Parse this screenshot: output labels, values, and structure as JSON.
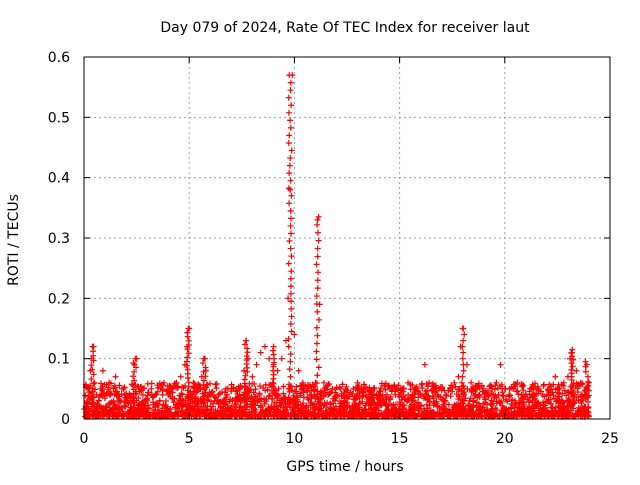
{
  "chart_data": {
    "type": "scatter",
    "title": "Day 079 of 2024, Rate Of TEC Index for receiver laut",
    "xlabel": "GPS time / hours",
    "ylabel": "ROTI / TECUs",
    "xlim": [
      0,
      25
    ],
    "ylim": [
      0,
      0.6
    ],
    "xticks": [
      0,
      5,
      10,
      15,
      20,
      25
    ],
    "xtick_labels": [
      "0",
      "5",
      "10",
      "15",
      "20",
      "25"
    ],
    "yticks": [
      0,
      0.1,
      0.2,
      0.3,
      0.4,
      0.5,
      0.6
    ],
    "ytick_labels": [
      "0",
      "0.1",
      "0.2",
      "0.3",
      "0.4",
      "0.5",
      "0.6"
    ],
    "grid": true,
    "marker": "+",
    "marker_color": "#ff0000",
    "series": [
      {
        "name": "ROTI",
        "x": [
          0.1,
          0.2,
          0.3,
          0.35,
          0.4,
          0.5,
          0.6,
          0.7,
          0.8,
          0.9,
          1.0,
          1.2,
          1.4,
          1.5,
          1.6,
          1.8,
          2.0,
          2.2,
          2.4,
          2.5,
          2.6,
          2.8,
          3.0,
          3.2,
          3.4,
          3.6,
          3.8,
          4.0,
          4.2,
          4.4,
          4.6,
          4.8,
          4.9,
          5.0,
          5.2,
          5.4,
          5.6,
          5.7,
          5.8,
          6.0,
          6.2,
          6.4,
          6.6,
          6.8,
          7.0,
          7.2,
          7.4,
          7.6,
          7.7,
          7.8,
          8.0,
          8.2,
          8.4,
          8.6,
          8.8,
          9.0,
          9.2,
          9.4,
          9.6,
          9.7,
          9.8,
          9.9,
          10.0,
          10.2,
          10.4,
          10.6,
          10.8,
          11.0,
          11.1,
          11.2,
          11.4,
          11.6,
          11.8,
          12.0,
          12.2,
          12.4,
          12.6,
          12.8,
          13.0,
          13.2,
          13.4,
          13.6,
          13.8,
          14.0,
          14.2,
          14.4,
          14.6,
          14.8,
          15.0,
          15.2,
          15.4,
          15.6,
          15.8,
          16.0,
          16.2,
          16.4,
          16.6,
          16.8,
          17.0,
          17.2,
          17.4,
          17.6,
          17.8,
          17.9,
          18.0,
          18.2,
          18.4,
          18.6,
          18.8,
          19.0,
          19.2,
          19.4,
          19.6,
          19.8,
          20.0,
          20.2,
          20.4,
          20.6,
          20.8,
          21.0,
          21.2,
          21.4,
          21.6,
          21.8,
          22.0,
          22.2,
          22.4,
          22.6,
          22.8,
          23.0,
          23.1,
          23.2,
          23.4,
          23.6,
          23.8,
          23.9,
          24.0
        ],
        "y": [
          0.02,
          0.05,
          0.08,
          0.1,
          0.12,
          0.06,
          0.04,
          0.03,
          0.05,
          0.08,
          0.04,
          0.06,
          0.03,
          0.07,
          0.04,
          0.05,
          0.04,
          0.03,
          0.09,
          0.1,
          0.05,
          0.04,
          0.03,
          0.05,
          0.04,
          0.03,
          0.06,
          0.04,
          0.05,
          0.06,
          0.07,
          0.09,
          0.12,
          0.15,
          0.06,
          0.05,
          0.07,
          0.1,
          0.08,
          0.04,
          0.03,
          0.04,
          0.03,
          0.04,
          0.05,
          0.03,
          0.04,
          0.08,
          0.13,
          0.1,
          0.07,
          0.09,
          0.11,
          0.12,
          0.1,
          0.09,
          0.08,
          0.1,
          0.13,
          0.2,
          0.38,
          0.57,
          0.14,
          0.08,
          0.06,
          0.05,
          0.04,
          0.06,
          0.33,
          0.19,
          0.06,
          0.04,
          0.05,
          0.04,
          0.05,
          0.03,
          0.04,
          0.05,
          0.06,
          0.05,
          0.04,
          0.04,
          0.05,
          0.04,
          0.03,
          0.04,
          0.05,
          0.04,
          0.04,
          0.05,
          0.06,
          0.04,
          0.05,
          0.04,
          0.09,
          0.06,
          0.05,
          0.04,
          0.05,
          0.04,
          0.05,
          0.06,
          0.07,
          0.12,
          0.15,
          0.09,
          0.06,
          0.05,
          0.04,
          0.05,
          0.04,
          0.05,
          0.06,
          0.09,
          0.05,
          0.04,
          0.05,
          0.06,
          0.04,
          0.04,
          0.05,
          0.04,
          0.05,
          0.04,
          0.04,
          0.05,
          0.07,
          0.05,
          0.06,
          0.07,
          0.1,
          0.11,
          0.08,
          0.06,
          0.04,
          0.09,
          0.06
        ]
      }
    ],
    "scatter_fill": {
      "description_values": "dense band of ROTI values between 0 and about 0.05 TECUs across 0-24 h"
    }
  }
}
